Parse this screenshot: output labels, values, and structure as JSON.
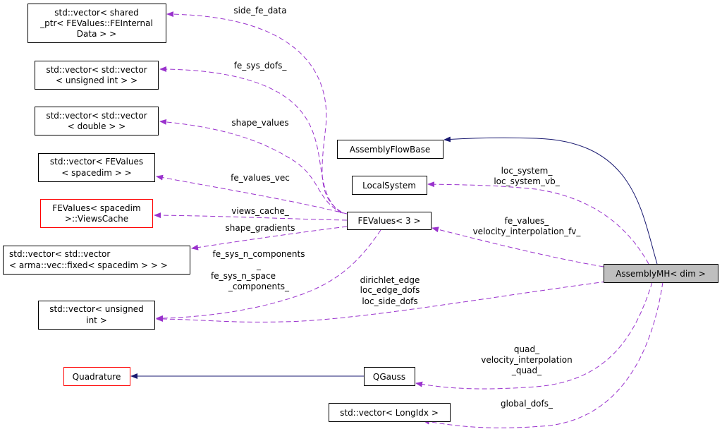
{
  "colors": {
    "usage_edge": "#9a32cd",
    "inheritance_edge": "#191970",
    "focus_fill": "#bfbfbf",
    "undocumented_border": "#ff0000"
  },
  "nodes": {
    "shared_ptr_vec": [
      "std::vector< shared",
      "_ptr< FEValues::FEInternal",
      "Data > >"
    ],
    "vec_vec_uint": [
      "std::vector< std::vector",
      "< unsigned int > >"
    ],
    "vec_vec_double": [
      "std::vector< std::vector",
      "< double > >"
    ],
    "vec_fevalues": [
      "std::vector< FEValues",
      "< spacedim > >"
    ],
    "views_cache": [
      "FEValues< spacedim",
      ">::ViewsCache"
    ],
    "vec_vec_arma": [
      "std::vector< std::vector",
      "< arma::vec::fixed< spacedim > > >"
    ],
    "vec_uint": [
      "std::vector< unsigned",
      "int >"
    ],
    "quadrature": "Quadrature",
    "qgauss": "QGauss",
    "vec_longidx": "std::vector< LongIdx >",
    "assembly_flow_base": "AssemblyFlowBase",
    "local_system": "LocalSystem",
    "fevalues3": "FEValues< 3 >",
    "assembly_mh": "AssemblyMH< dim >"
  },
  "edge_labels": {
    "side_fe_data": "side_fe_data",
    "fe_sys_dofs": "fe_sys_dofs_",
    "shape_values": "shape_values",
    "fe_values_vec": "fe_values_vec",
    "views_cache": "views_cache_",
    "shape_gradients": "shape_gradients",
    "fe_sys_n": [
      "fe_sys_n_components",
      "_",
      "fe_sys_n_space",
      "_components_"
    ],
    "loc_system": [
      "loc_system_",
      "loc_system_vb_"
    ],
    "fe_values": [
      "fe_values_",
      "velocity_interpolation_fv_"
    ],
    "dofs": [
      "dirichlet_edge",
      "loc_edge_dofs",
      "loc_side_dofs"
    ],
    "quad": [
      "quad_",
      "velocity_interpolation",
      "_quad_"
    ],
    "global_dofs": "global_dofs_"
  }
}
